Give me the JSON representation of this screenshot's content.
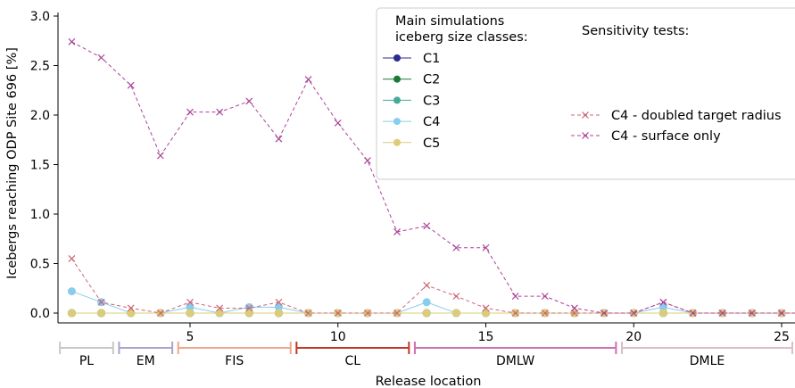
{
  "chart_data": {
    "type": "line",
    "xlabel": "Release location",
    "ylabel": "Icebergs reaching ODP Site 696 [%]",
    "ylim": [
      0,
      3.0
    ],
    "xlim": [
      0.5,
      26
    ],
    "x_ticks": [
      5,
      10,
      15,
      20,
      25
    ],
    "y_ticks": [
      0.0,
      0.5,
      1.0,
      1.5,
      2.0,
      2.5,
      3.0
    ],
    "y_tick_labels": [
      "0.0",
      "0.5",
      "1.0",
      "1.5",
      "2.0",
      "2.5",
      "3.0"
    ],
    "grid": false,
    "legend_placement": "top-right",
    "legend_main_title": "Main simulations\niceberg size classes:",
    "legend_sens_title": "Sensitivity tests:",
    "x": [
      1,
      2,
      3,
      4,
      5,
      6,
      7,
      8,
      9,
      10,
      11,
      12,
      13,
      14,
      15,
      16,
      17,
      18,
      19,
      20,
      21,
      22,
      23,
      24,
      25,
      26
    ],
    "series": [
      {
        "name": "C1",
        "color": "#2b2b8c",
        "style": "solid",
        "marker": "o",
        "values": [
          0,
          0,
          0,
          0,
          0,
          0,
          0,
          0,
          0,
          0,
          0,
          0,
          0,
          0,
          0,
          0,
          0,
          0,
          0,
          0,
          0,
          0,
          0,
          0,
          0,
          0
        ]
      },
      {
        "name": "C2",
        "color": "#1a7a35",
        "style": "solid",
        "marker": "o",
        "values": [
          0,
          0,
          0,
          0,
          0,
          0,
          0,
          0,
          0,
          0,
          0,
          0,
          0,
          0,
          0,
          0,
          0,
          0,
          0,
          0,
          0,
          0,
          0,
          0,
          0,
          0
        ]
      },
      {
        "name": "C3",
        "color": "#44aa99",
        "style": "solid",
        "marker": "o",
        "values": [
          0,
          0,
          0,
          0,
          0,
          0,
          0,
          0,
          0,
          0,
          0,
          0,
          0,
          0,
          0,
          0,
          0,
          0,
          0,
          0,
          0,
          0,
          0,
          0,
          0,
          0
        ]
      },
      {
        "name": "C4",
        "color": "#88ccee",
        "style": "solid",
        "marker": "o",
        "values": [
          0.22,
          0.11,
          0,
          0,
          0.06,
          0,
          0.06,
          0.06,
          0,
          0,
          0,
          0,
          0.11,
          0,
          0,
          0,
          0,
          0,
          0,
          0,
          0.06,
          0,
          0,
          0,
          0,
          0
        ]
      },
      {
        "name": "C5",
        "color": "#ddcc77",
        "style": "solid",
        "marker": "o",
        "values": [
          0,
          0,
          0,
          0,
          0,
          0,
          0,
          0,
          0,
          0,
          0,
          0,
          0,
          0,
          0,
          0,
          0,
          0,
          0,
          0,
          0,
          0,
          0,
          0,
          0,
          0
        ]
      },
      {
        "name": "C4 - doubled target radius",
        "color": "#cc6677",
        "style": "dashed",
        "marker": "x",
        "values": [
          0.55,
          0.11,
          0.05,
          0,
          0.11,
          0.05,
          0.05,
          0.11,
          0,
          0,
          0,
          0,
          0.28,
          0.17,
          0.05,
          0,
          0,
          0,
          0,
          0,
          0.11,
          0,
          0,
          0,
          0,
          0
        ]
      },
      {
        "name": "C4 - surface only",
        "color": "#aa4499",
        "style": "dashed",
        "marker": "x",
        "values": [
          2.74,
          2.58,
          2.3,
          1.59,
          2.03,
          2.03,
          2.14,
          1.76,
          2.36,
          1.92,
          1.54,
          0.82,
          0.88,
          0.66,
          0.66,
          0.17,
          0.17,
          0.05,
          0,
          0,
          0.11,
          0,
          0,
          0,
          0,
          0
        ]
      }
    ],
    "regions": [
      {
        "label": "PL",
        "from": 0.6,
        "to": 2.4,
        "color": "#c8c8c8"
      },
      {
        "label": "EM",
        "from": 2.6,
        "to": 4.4,
        "color": "#a8a4d0"
      },
      {
        "label": "FIS",
        "from": 4.6,
        "to": 8.4,
        "color": "#eba88a"
      },
      {
        "label": "CL",
        "from": 8.6,
        "to": 12.4,
        "color": "#c0392b"
      },
      {
        "label": "DMLW",
        "from": 12.6,
        "to": 19.4,
        "color": "#cf6fb4"
      },
      {
        "label": "DMLE",
        "from": 19.6,
        "to": 26.0,
        "color": "#d8bfc8"
      }
    ]
  }
}
